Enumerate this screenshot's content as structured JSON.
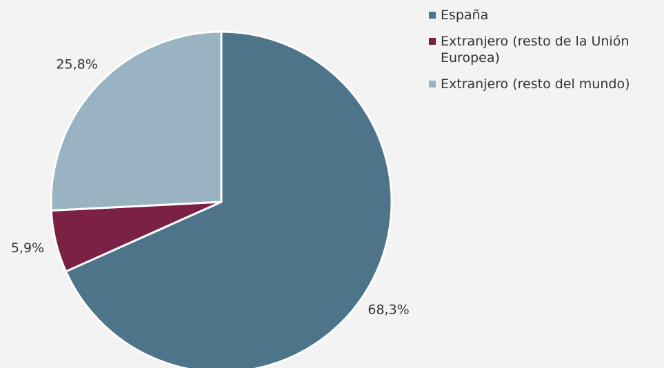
{
  "chart_data": {
    "type": "pie",
    "categories": [
      "España",
      "Extranjero (resto de la Unión Europea)",
      "Extranjero (resto del mundo)"
    ],
    "values": [
      68.3,
      5.9,
      25.8
    ],
    "value_labels": [
      "68,3%",
      "5,9%",
      "25,8%"
    ],
    "colors": [
      "#4d7489",
      "#7b2145",
      "#9ab3c3"
    ],
    "legend": "right"
  }
}
